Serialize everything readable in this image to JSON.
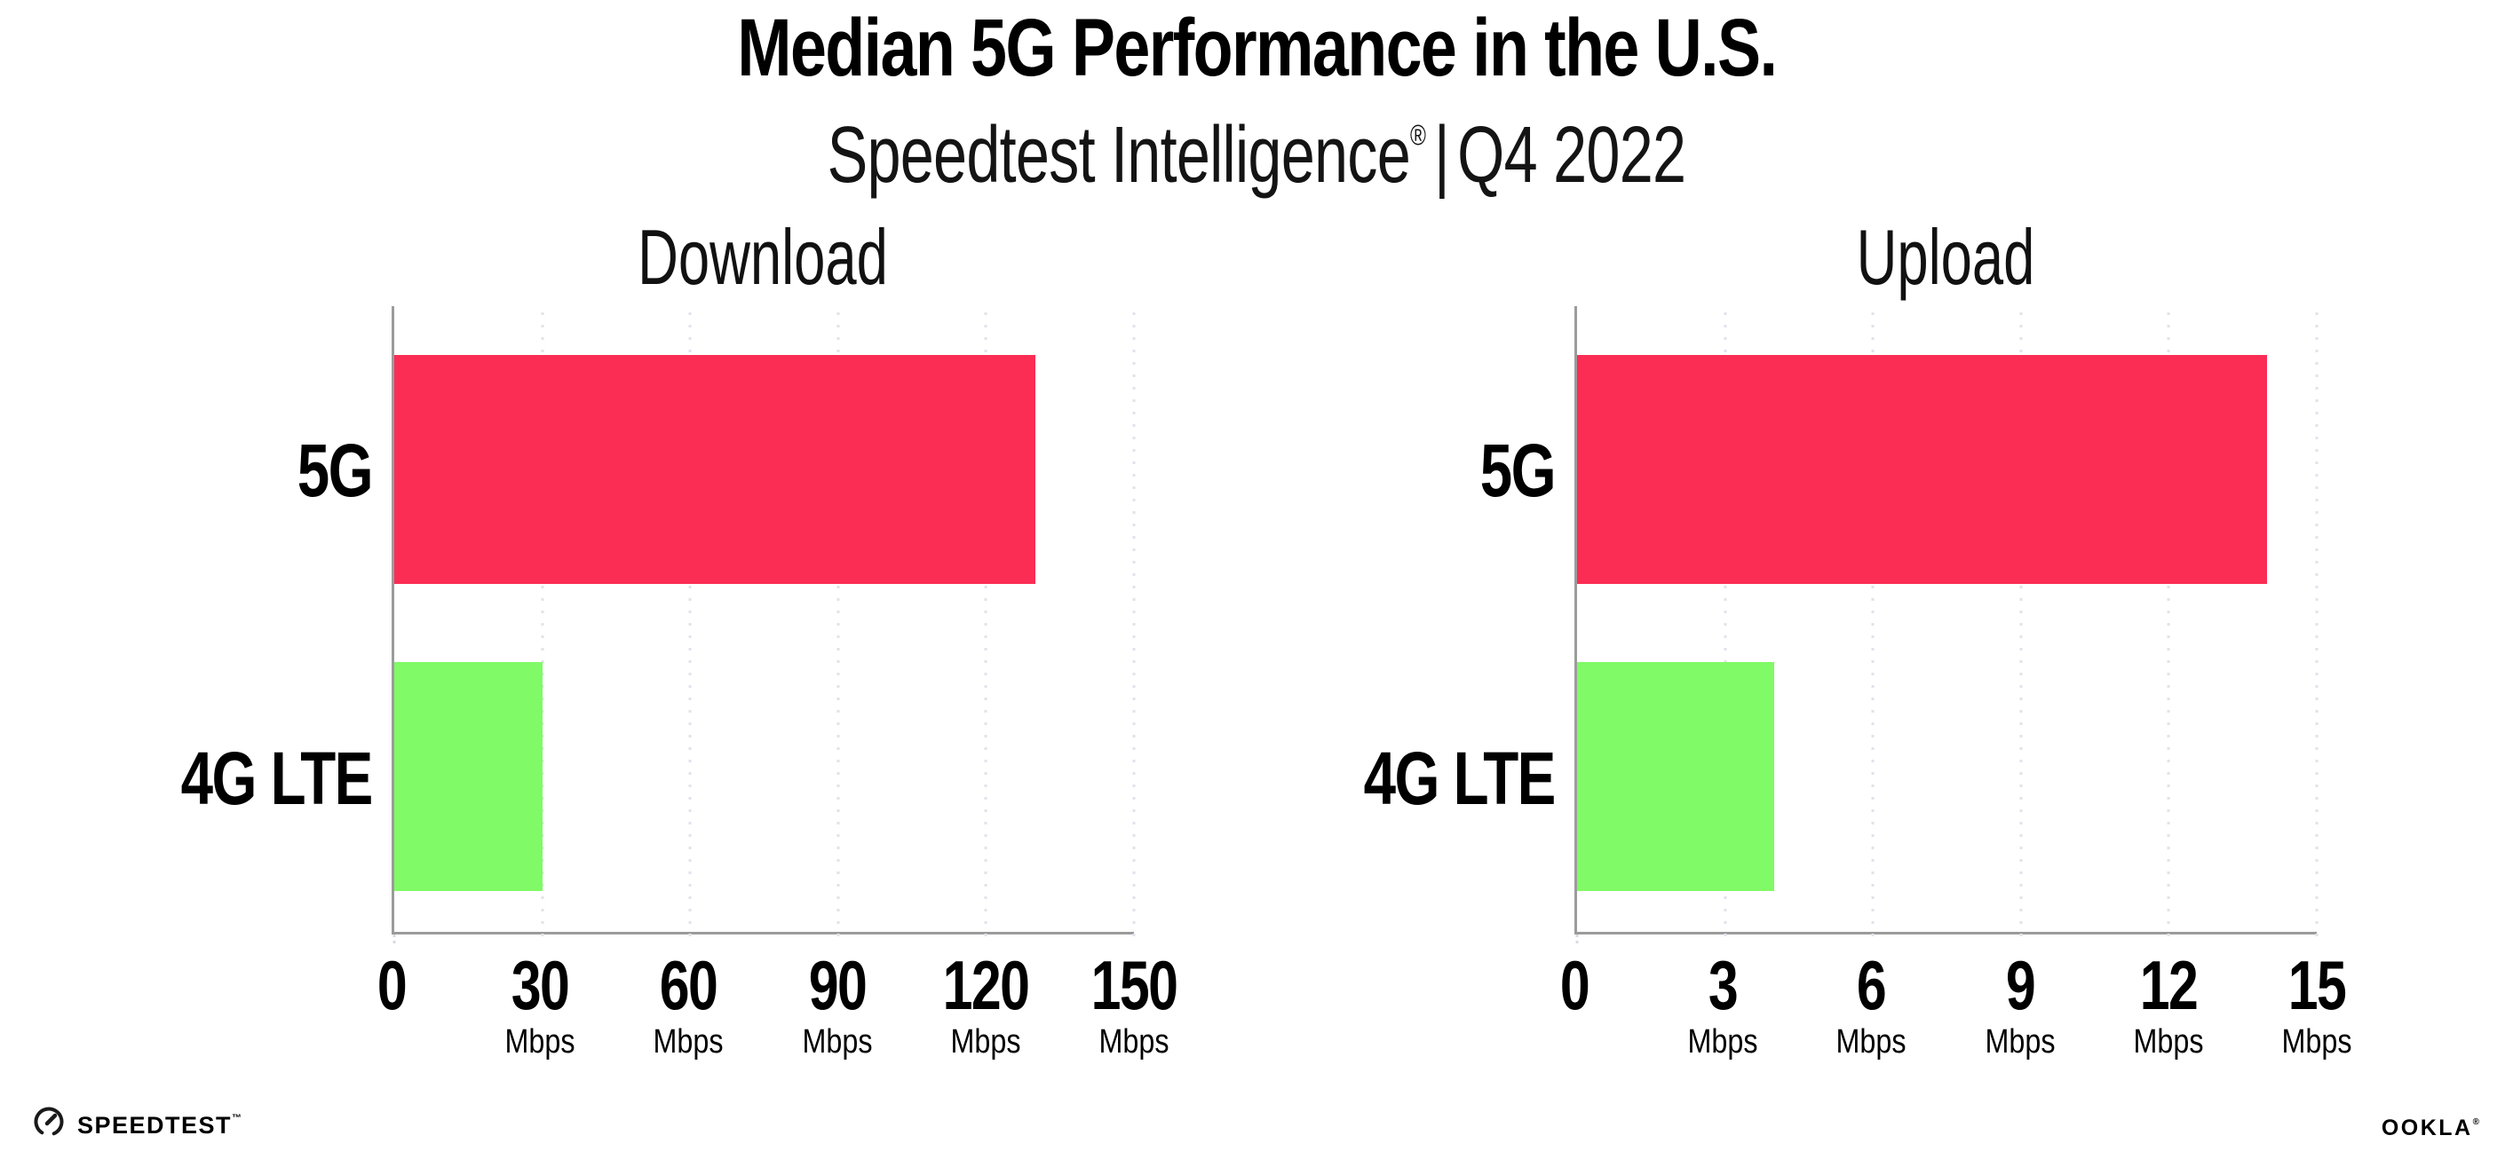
{
  "header": {
    "title": "Median 5G Performance in the U.S.",
    "subtitle_brand": "Speedtest Intelligence",
    "subtitle_reg": "®",
    "subtitle_pipe": "|",
    "subtitle_period": "Q4 2022"
  },
  "chart_data": {
    "type": "bar",
    "orientation": "horizontal",
    "categories": [
      "5G",
      "4G LTE"
    ],
    "series_colors": {
      "5G": "#FB2D55",
      "4G LTE": "#80FA66"
    },
    "grid": "dotted-vertical-gridlines",
    "legend": "none",
    "charts": [
      {
        "title": "Download",
        "unit": "Mbps",
        "xlim": [
          0,
          150
        ],
        "ticks": [
          0,
          30,
          60,
          90,
          120,
          150
        ],
        "values": [
          130,
          30
        ]
      },
      {
        "title": "Upload",
        "unit": "Mbps",
        "xlim": [
          0,
          15
        ],
        "ticks": [
          0,
          3,
          6,
          9,
          12,
          15
        ],
        "values": [
          14,
          4
        ]
      }
    ]
  },
  "colors": {
    "bar_5g": "#FB2D55",
    "bar_4g_lte": "#80FA66",
    "axis_line": "#9B9B9B",
    "gridline_dots": "#E2E2EC",
    "background": "#FFFFFF",
    "text": "#000000"
  },
  "footer": {
    "speedtest_label": "SPEEDTEST",
    "speedtest_mark": "™",
    "ookla_label": "OOKLA",
    "ookla_mark": "®"
  }
}
